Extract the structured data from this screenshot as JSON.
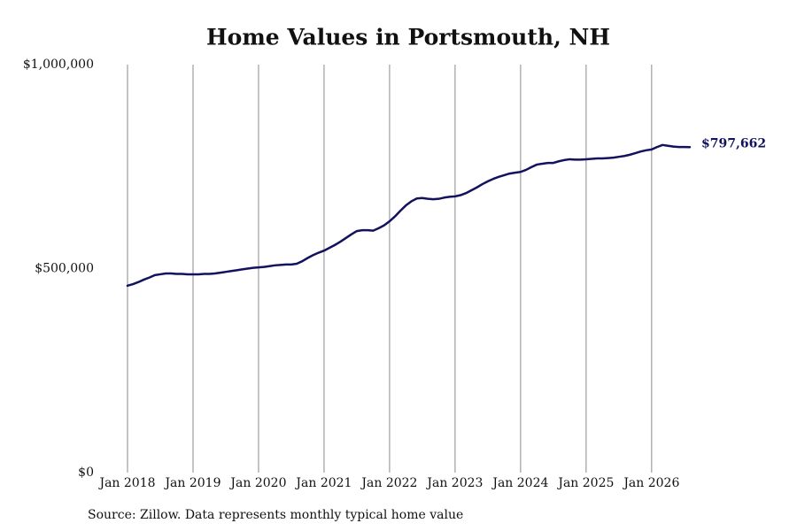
{
  "chart_data": {
    "type": "line",
    "title": "Home Values in Portsmouth, NH",
    "note": "Source: Zillow. Data represents monthly typical home value",
    "color": "#12125e",
    "grid": true,
    "xlim": [
      "2018-01",
      "2026-08"
    ],
    "xticks": [
      {
        "value": "2018-01",
        "label": "Jan 2018"
      },
      {
        "value": "2019-01",
        "label": "Jan 2019"
      },
      {
        "value": "2020-01",
        "label": "Jan 2020"
      },
      {
        "value": "2021-01",
        "label": "Jan 2021"
      },
      {
        "value": "2022-01",
        "label": "Jan 2022"
      },
      {
        "value": "2023-01",
        "label": "Jan 2023"
      },
      {
        "value": "2024-01",
        "label": "Jan 2024"
      },
      {
        "value": "2025-01",
        "label": "Jan 2025"
      },
      {
        "value": "2026-01",
        "label": "Jan 2026"
      }
    ],
    "ylim": [
      0,
      1000000
    ],
    "yticks": [
      {
        "value": 0,
        "label": "$0"
      },
      {
        "value": 500000,
        "label": "$500,000"
      },
      {
        "value": 1000000,
        "label": "$1,000,000"
      }
    ],
    "x": [
      "2018-01",
      "2018-02",
      "2018-03",
      "2018-04",
      "2018-05",
      "2018-06",
      "2018-07",
      "2018-08",
      "2018-09",
      "2018-10",
      "2018-11",
      "2018-12",
      "2019-01",
      "2019-02",
      "2019-03",
      "2019-04",
      "2019-05",
      "2019-06",
      "2019-07",
      "2019-08",
      "2019-09",
      "2019-10",
      "2019-11",
      "2019-12",
      "2020-01",
      "2020-02",
      "2020-03",
      "2020-04",
      "2020-05",
      "2020-06",
      "2020-07",
      "2020-08",
      "2020-09",
      "2020-10",
      "2020-11",
      "2020-12",
      "2021-01",
      "2021-02",
      "2021-03",
      "2021-04",
      "2021-05",
      "2021-06",
      "2021-07",
      "2021-08",
      "2021-09",
      "2021-10",
      "2021-11",
      "2021-12",
      "2022-01",
      "2022-02",
      "2022-03",
      "2022-04",
      "2022-05",
      "2022-06",
      "2022-07",
      "2022-08",
      "2022-09",
      "2022-10",
      "2022-11",
      "2022-12",
      "2023-01",
      "2023-02",
      "2023-03",
      "2023-04",
      "2023-05",
      "2023-06",
      "2023-07",
      "2023-08",
      "2023-09",
      "2023-10",
      "2023-11",
      "2023-12",
      "2024-01",
      "2024-02",
      "2024-03",
      "2024-04",
      "2024-05",
      "2024-06",
      "2024-07",
      "2024-08",
      "2024-09",
      "2024-10",
      "2024-11",
      "2024-12",
      "2025-01",
      "2025-02",
      "2025-03",
      "2025-04",
      "2025-05",
      "2025-06",
      "2025-07",
      "2025-08",
      "2025-09",
      "2025-10",
      "2025-11",
      "2025-12",
      "2026-01",
      "2026-02",
      "2026-03",
      "2026-04",
      "2026-05",
      "2026-06",
      "2026-07",
      "2026-08"
    ],
    "values": [
      458000,
      462000,
      467000,
      473000,
      478000,
      484000,
      486000,
      488000,
      488000,
      487000,
      487000,
      486000,
      486000,
      486000,
      487000,
      487000,
      488000,
      490000,
      492000,
      494000,
      496000,
      498000,
      500000,
      502000,
      503000,
      504000,
      506000,
      508000,
      509000,
      510000,
      510000,
      512000,
      518000,
      526000,
      533000,
      539000,
      544000,
      551000,
      558000,
      566000,
      575000,
      584000,
      592000,
      594000,
      594000,
      593000,
      599000,
      606000,
      616000,
      628000,
      642000,
      655000,
      665000,
      672000,
      673000,
      671000,
      670000,
      671000,
      674000,
      676000,
      677000,
      680000,
      685000,
      692000,
      699000,
      707000,
      714000,
      720000,
      725000,
      729000,
      733000,
      735000,
      737000,
      742000,
      749000,
      755000,
      757000,
      759000,
      759000,
      763000,
      766000,
      768000,
      767000,
      767000,
      768000,
      769000,
      770000,
      770000,
      771000,
      772000,
      774000,
      776000,
      779000,
      783000,
      787000,
      790000,
      792000,
      798000,
      803000,
      801000,
      799000,
      798000,
      798000,
      797662
    ],
    "value_labels": [
      null,
      null,
      null,
      null,
      null,
      null,
      null,
      null,
      null,
      null,
      null,
      null,
      null,
      null,
      null,
      null,
      null,
      null,
      null,
      null,
      null,
      null,
      null,
      null,
      null,
      null,
      null,
      null,
      null,
      null,
      null,
      null,
      null,
      null,
      null,
      null,
      null,
      null,
      null,
      null,
      null,
      null,
      null,
      null,
      null,
      null,
      null,
      null,
      null,
      null,
      null,
      null,
      null,
      null,
      null,
      null,
      null,
      null,
      null,
      null,
      null,
      null,
      null,
      null,
      null,
      null,
      null,
      null,
      null,
      null,
      null,
      null,
      null,
      null,
      null,
      null,
      null,
      null,
      null,
      null,
      null,
      null,
      null,
      null,
      null,
      null,
      null,
      null,
      null,
      null,
      null,
      null,
      null,
      null,
      null,
      null,
      null,
      null,
      null,
      null,
      null,
      null,
      null,
      "$797,662"
    ]
  }
}
